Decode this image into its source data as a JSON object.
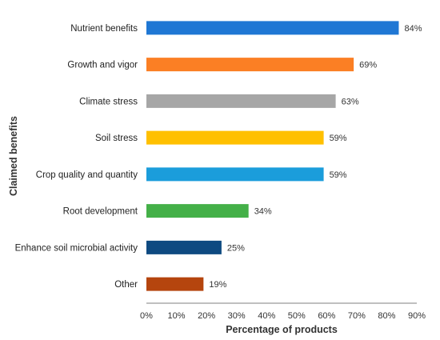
{
  "chart_data": {
    "type": "bar",
    "orientation": "horizontal",
    "title": "",
    "xlabel": "Percentage of products",
    "ylabel": "Claimed benefits",
    "xlim": [
      0,
      90
    ],
    "x_ticks": [
      "0%",
      "10%",
      "20%",
      "30%",
      "40%",
      "50%",
      "60%",
      "70%",
      "80%",
      "90%"
    ],
    "grid": false,
    "categories": [
      "Nutrient benefits",
      "Growth and vigor",
      "Climate stress",
      "Soil stress",
      "Crop quality and quantity",
      "Root development",
      "Enhance soil microbial activity",
      "Other"
    ],
    "values": [
      84,
      69,
      63,
      59,
      59,
      34,
      25,
      19
    ],
    "value_labels": [
      "84%",
      "69%",
      "63%",
      "59%",
      "59%",
      "34%",
      "25%",
      "19%"
    ],
    "colors": [
      "#1f77d4",
      "#fb7f24",
      "#a6a6a6",
      "#ffc000",
      "#1b9ddb",
      "#44b048",
      "#0e4a81",
      "#b5450e"
    ]
  }
}
